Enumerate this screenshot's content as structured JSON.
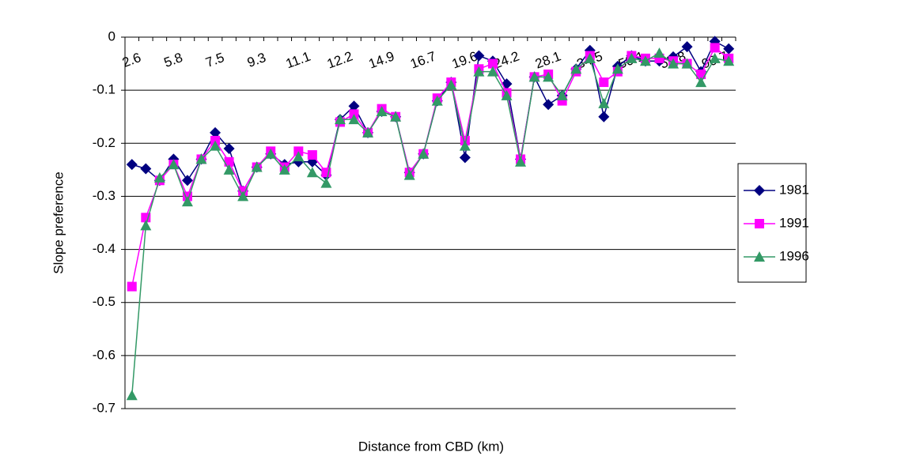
{
  "chart_data": {
    "type": "line",
    "x_label": "Distance from CBD (km)",
    "y_label": "Slope preference",
    "categories": [
      "2.6",
      null,
      null,
      "5.8",
      null,
      null,
      "7.5",
      null,
      null,
      "9.3",
      null,
      null,
      "11.1",
      null,
      null,
      "12.2",
      null,
      null,
      "14.9",
      null,
      null,
      "16.7",
      null,
      null,
      "19.6",
      null,
      null,
      "24.2",
      null,
      null,
      "28.1",
      null,
      null,
      "34.5",
      null,
      null,
      "50.1",
      null,
      null,
      "55.8",
      null,
      null,
      "90.7",
      null
    ],
    "series": [
      {
        "name": "1981",
        "color": "#000080",
        "marker": "diamond",
        "values": [
          -0.24,
          -0.248,
          -0.27,
          -0.23,
          -0.27,
          -0.23,
          -0.18,
          -0.21,
          -0.29,
          -0.245,
          -0.22,
          -0.24,
          -0.235,
          -0.235,
          -0.26,
          -0.155,
          -0.13,
          -0.18,
          -0.14,
          -0.15,
          -0.255,
          -0.22,
          -0.12,
          -0.085,
          -0.227,
          -0.035,
          -0.045,
          -0.088,
          -0.23,
          -0.075,
          -0.127,
          -0.11,
          -0.06,
          -0.025,
          -0.15,
          -0.055,
          -0.035,
          -0.045,
          -0.045,
          -0.037,
          -0.018,
          -0.065,
          -0.008,
          -0.022
        ]
      },
      {
        "name": "1991",
        "color": "#ff00ff",
        "marker": "square",
        "values": [
          -0.47,
          -0.34,
          -0.27,
          -0.24,
          -0.3,
          -0.23,
          -0.195,
          -0.235,
          -0.29,
          -0.245,
          -0.215,
          -0.245,
          -0.215,
          -0.222,
          -0.255,
          -0.16,
          -0.145,
          -0.18,
          -0.135,
          -0.15,
          -0.255,
          -0.22,
          -0.115,
          -0.085,
          -0.195,
          -0.06,
          -0.05,
          -0.105,
          -0.23,
          -0.075,
          -0.07,
          -0.12,
          -0.065,
          -0.035,
          -0.085,
          -0.065,
          -0.035,
          -0.04,
          -0.04,
          -0.045,
          -0.05,
          -0.07,
          -0.02,
          -0.04
        ]
      },
      {
        "name": "1996",
        "color": "#339966",
        "marker": "triangle",
        "values": [
          -0.675,
          -0.355,
          -0.265,
          -0.24,
          -0.31,
          -0.23,
          -0.205,
          -0.25,
          -0.3,
          -0.245,
          -0.22,
          -0.25,
          -0.225,
          -0.255,
          -0.275,
          -0.155,
          -0.155,
          -0.18,
          -0.14,
          -0.15,
          -0.26,
          -0.22,
          -0.12,
          -0.09,
          -0.205,
          -0.065,
          -0.065,
          -0.11,
          -0.235,
          -0.075,
          -0.075,
          -0.11,
          -0.06,
          -0.04,
          -0.125,
          -0.06,
          -0.04,
          -0.045,
          -0.03,
          -0.05,
          -0.05,
          -0.085,
          -0.04,
          -0.045
        ]
      }
    ],
    "ylim": [
      -0.7,
      0
    ],
    "yticks": [
      0,
      -0.1,
      -0.2,
      -0.3,
      -0.4,
      -0.5,
      -0.6,
      -0.7
    ],
    "grid": true,
    "legend": "right"
  }
}
